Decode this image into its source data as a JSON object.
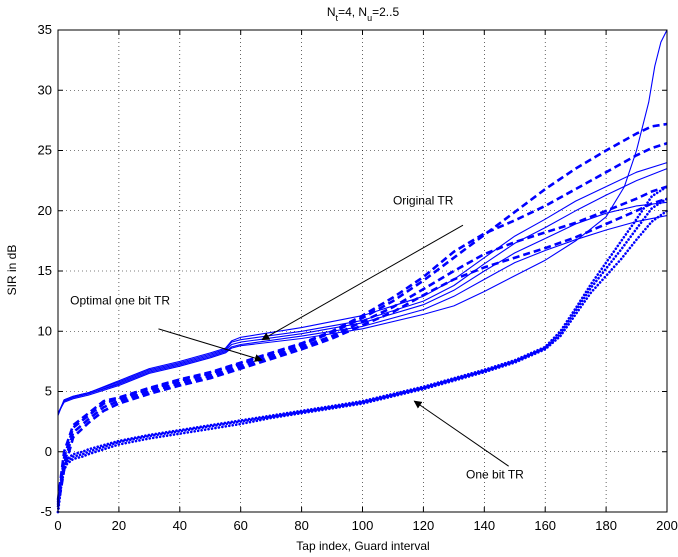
{
  "chart_data": {
    "type": "line",
    "title": "N_t=4, N_u=2..5",
    "title_parts": {
      "n": "N",
      "t_sub": "t",
      "mid": "=4, N",
      "u_sub": "u",
      "range": "=2..5"
    },
    "xlabel": "Tap index, Guard interval",
    "ylabel": "SIR in dB",
    "xlim": [
      0,
      200
    ],
    "ylim": [
      -5,
      35
    ],
    "xticks": [
      0,
      20,
      40,
      60,
      80,
      100,
      120,
      140,
      160,
      180,
      200
    ],
    "yticks": [
      -5,
      0,
      5,
      10,
      15,
      20,
      25,
      30,
      35
    ],
    "grid": true,
    "series_color": "#0000ff",
    "series": [
      {
        "group": "original",
        "style": "solid",
        "x": [
          0,
          2,
          5,
          10,
          20,
          30,
          40,
          50,
          55,
          57,
          60,
          80,
          100,
          120,
          130,
          140,
          150,
          160,
          170,
          180,
          190,
          200
        ],
        "y": [
          3.0,
          4.3,
          4.6,
          4.9,
          5.9,
          6.9,
          7.5,
          8.2,
          8.6,
          9.2,
          9.5,
          10.3,
          11.3,
          12.9,
          14.3,
          16.1,
          17.9,
          19.3,
          20.8,
          22.0,
          23.2,
          24.0
        ]
      },
      {
        "group": "original",
        "style": "solid",
        "x": [
          0,
          2,
          5,
          10,
          20,
          30,
          40,
          50,
          55,
          57,
          60,
          80,
          100,
          120,
          130,
          140,
          150,
          160,
          170,
          180,
          190,
          200
        ],
        "y": [
          3.1,
          4.3,
          4.6,
          4.9,
          5.8,
          6.8,
          7.4,
          8.1,
          8.5,
          9.1,
          9.3,
          10.0,
          10.9,
          12.5,
          13.8,
          15.6,
          17.3,
          18.6,
          20.0,
          21.3,
          22.5,
          23.5
        ]
      },
      {
        "group": "original",
        "style": "solid",
        "x": [
          0,
          2,
          5,
          10,
          20,
          30,
          40,
          50,
          55,
          57,
          60,
          80,
          100,
          120,
          130,
          140,
          150,
          160,
          170,
          180,
          190,
          200
        ],
        "y": [
          3.1,
          4.2,
          4.5,
          4.8,
          5.7,
          6.7,
          7.3,
          8.0,
          8.4,
          8.9,
          9.1,
          9.8,
          10.7,
          12.2,
          13.4,
          15.0,
          16.5,
          17.7,
          18.9,
          19.8,
          20.4,
          20.7
        ]
      },
      {
        "group": "original",
        "style": "solid",
        "x": [
          0,
          2,
          5,
          10,
          20,
          30,
          40,
          50,
          55,
          57,
          60,
          80,
          100,
          120,
          130,
          140,
          150,
          160,
          170,
          180,
          190,
          200
        ],
        "y": [
          3.2,
          4.2,
          4.5,
          4.8,
          5.6,
          6.6,
          7.2,
          7.9,
          8.3,
          8.7,
          8.9,
          9.6,
          10.4,
          11.8,
          12.9,
          14.3,
          15.7,
          16.7,
          17.6,
          18.4,
          19.1,
          19.6
        ]
      },
      {
        "group": "original",
        "style": "solid",
        "x": [
          0,
          2,
          5,
          10,
          20,
          30,
          40,
          50,
          55,
          57,
          60,
          80,
          100,
          120,
          130,
          140,
          150,
          160,
          170,
          180,
          186,
          190,
          194,
          196,
          198,
          200
        ],
        "y": [
          3.2,
          4.1,
          4.4,
          4.7,
          5.5,
          6.5,
          7.1,
          7.8,
          8.2,
          8.6,
          8.8,
          9.4,
          10.2,
          11.4,
          12.1,
          13.3,
          14.6,
          15.9,
          17.5,
          19.5,
          22.0,
          25.0,
          29.0,
          32.0,
          34.0,
          35.0
        ]
      },
      {
        "group": "optimal",
        "style": "dashed",
        "x": [
          0,
          2,
          5,
          10,
          15,
          20,
          30,
          40,
          50,
          60,
          70,
          80,
          90,
          100,
          110,
          120,
          130,
          140,
          150,
          160,
          170,
          180,
          190,
          195,
          200
        ],
        "y": [
          -4.0,
          0.0,
          2.2,
          3.2,
          4.2,
          4.5,
          5.3,
          6.0,
          6.6,
          7.4,
          8.2,
          9.0,
          10.0,
          11.3,
          12.8,
          14.5,
          16.6,
          18.1,
          19.2,
          20.4,
          21.8,
          23.2,
          24.6,
          25.2,
          25.6
        ]
      },
      {
        "group": "optimal",
        "style": "dashed",
        "x": [
          0,
          2,
          5,
          10,
          15,
          20,
          30,
          40,
          50,
          60,
          70,
          80,
          90,
          100,
          110,
          120,
          130,
          140,
          150,
          160,
          170,
          180,
          190,
          195,
          200
        ],
        "y": [
          -4.2,
          -0.5,
          2.0,
          3.0,
          4.0,
          4.4,
          5.2,
          5.9,
          6.5,
          7.3,
          8.1,
          8.9,
          9.9,
          11.1,
          12.5,
          14.2,
          16.1,
          18.0,
          19.9,
          21.8,
          23.5,
          25.0,
          26.4,
          27.0,
          27.2
        ]
      },
      {
        "group": "optimal",
        "style": "dashed",
        "x": [
          0,
          2,
          5,
          10,
          15,
          20,
          30,
          40,
          50,
          60,
          70,
          80,
          90,
          100,
          110,
          120,
          130,
          140,
          150,
          160,
          170,
          180,
          190,
          195,
          200
        ],
        "y": [
          -4.4,
          -1.0,
          1.6,
          2.7,
          3.7,
          4.2,
          5.0,
          5.7,
          6.3,
          7.1,
          7.9,
          8.7,
          9.6,
          10.8,
          12.0,
          13.5,
          15.0,
          16.4,
          17.4,
          18.2,
          19.0,
          20.0,
          21.0,
          21.6,
          22.0
        ]
      },
      {
        "group": "optimal",
        "style": "dashed",
        "x": [
          0,
          2,
          5,
          10,
          15,
          20,
          30,
          40,
          50,
          60,
          70,
          80,
          90,
          100,
          110,
          120,
          130,
          140,
          150,
          160,
          170,
          180,
          190,
          195,
          200
        ],
        "y": [
          -4.6,
          -1.5,
          1.2,
          2.4,
          3.4,
          4.0,
          4.8,
          5.5,
          6.1,
          6.9,
          7.7,
          8.5,
          9.4,
          10.5,
          11.6,
          13.0,
          14.3,
          15.3,
          16.1,
          16.9,
          17.8,
          18.9,
          20.0,
          20.6,
          21.0
        ]
      },
      {
        "group": "one_bit",
        "style": "dotted",
        "x": [
          0,
          1,
          2,
          3,
          5,
          8,
          10,
          20,
          30,
          40,
          50,
          60,
          70,
          80,
          90,
          100,
          110,
          120,
          130,
          140,
          150,
          160,
          165,
          170,
          175,
          180,
          185,
          190,
          195,
          200
        ],
        "y": [
          -5.0,
          -3.0,
          -1.5,
          -1.0,
          -0.6,
          -0.4,
          -0.2,
          0.6,
          1.1,
          1.5,
          1.9,
          2.3,
          2.8,
          3.2,
          3.6,
          4.0,
          4.6,
          5.2,
          5.9,
          6.6,
          7.4,
          8.5,
          9.6,
          11.4,
          13.2,
          14.6,
          16.0,
          17.6,
          19.1,
          20.0
        ]
      },
      {
        "group": "one_bit",
        "style": "dotted",
        "x": [
          0,
          1,
          2,
          3,
          5,
          8,
          10,
          20,
          30,
          40,
          50,
          60,
          70,
          80,
          90,
          100,
          110,
          120,
          130,
          140,
          150,
          160,
          165,
          170,
          175,
          180,
          185,
          190,
          195,
          200
        ],
        "y": [
          -5.0,
          -2.8,
          -1.3,
          -0.8,
          -0.4,
          -0.2,
          0.0,
          0.8,
          1.3,
          1.7,
          2.1,
          2.5,
          2.9,
          3.3,
          3.7,
          4.1,
          4.7,
          5.3,
          6.0,
          6.7,
          7.5,
          8.6,
          9.8,
          11.7,
          13.6,
          15.2,
          16.8,
          18.5,
          20.2,
          21.0
        ]
      },
      {
        "group": "one_bit",
        "style": "dotted",
        "x": [
          0,
          1,
          2,
          3,
          5,
          8,
          10,
          20,
          30,
          40,
          50,
          60,
          70,
          80,
          90,
          100,
          110,
          120,
          130,
          140,
          150,
          160,
          165,
          170,
          175,
          180,
          185,
          190,
          195,
          200
        ],
        "y": [
          -5.0,
          -2.6,
          -1.1,
          -0.6,
          -0.2,
          0.0,
          0.2,
          0.9,
          1.4,
          1.8,
          2.2,
          2.6,
          3.0,
          3.4,
          3.8,
          4.2,
          4.8,
          5.4,
          6.1,
          6.8,
          7.6,
          8.7,
          10.0,
          11.9,
          13.9,
          15.7,
          17.5,
          19.3,
          21.2,
          22.0
        ]
      }
    ],
    "annotations": [
      {
        "text": "Original TR",
        "x": 110,
        "y": 20.5,
        "arrow_from": [
          133,
          18.8
        ],
        "arrow_to": [
          67,
          9.3
        ]
      },
      {
        "text": "Optimal one bit TR",
        "x": 4,
        "y": 12.2,
        "arrow_from": [
          33,
          10.2
        ],
        "arrow_to": [
          67,
          7.6
        ]
      },
      {
        "text": "One bit TR",
        "x": 134,
        "y": -2.2,
        "arrow_from": [
          148,
          -1.2
        ],
        "arrow_to": [
          117,
          4.2
        ]
      }
    ]
  }
}
